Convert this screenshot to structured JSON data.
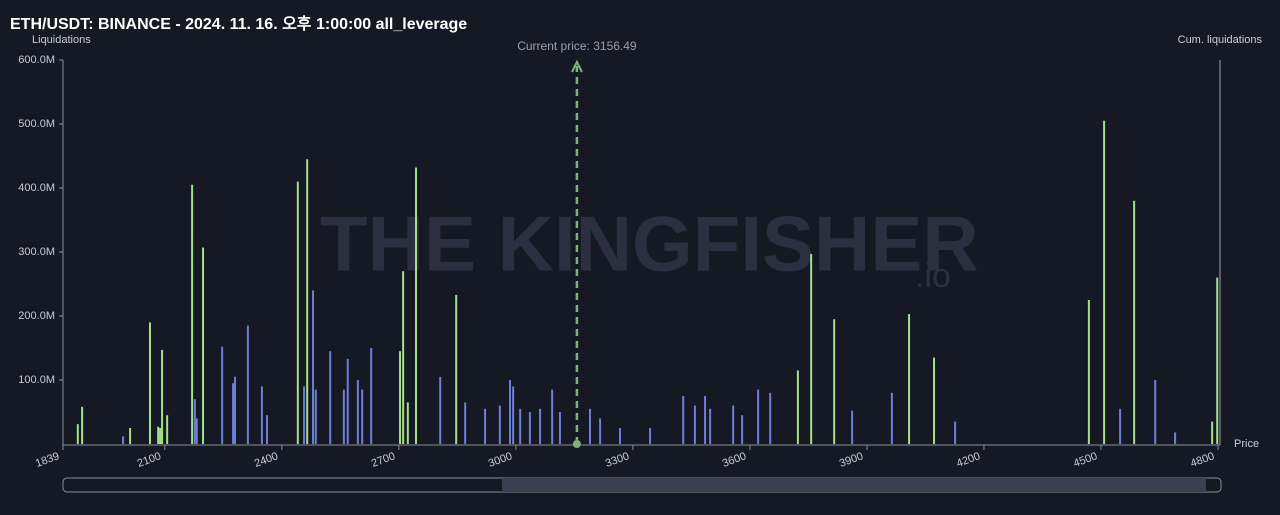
{
  "chart_data": {
    "type": "bar",
    "title": "ETH/USDT: BINANCE - 2024. 11. 16. 오후 1:00:00 all_leverage",
    "y_axis_label": "Liquidations",
    "y2_axis_label": "Cum. liquidations",
    "x_axis_label": "Price",
    "current_price_label": "Current price: 3156.49",
    "current_price": 3156.49,
    "watermark": "THE KINGFISHER",
    "watermark_suffix": ".io",
    "xlim": [
      1839,
      4800
    ],
    "xticks": [
      1839,
      2100,
      2400,
      2700,
      3000,
      3300,
      3600,
      3900,
      4200,
      4500,
      4800
    ],
    "ylim": [
      0,
      600
    ],
    "yticks": [
      {
        "value": 100,
        "label": "100.0M"
      },
      {
        "value": 200,
        "label": "200.0M"
      },
      {
        "value": 300,
        "label": "300.0M"
      },
      {
        "value": 400,
        "label": "400.0M"
      },
      {
        "value": 500,
        "label": "500.0M"
      },
      {
        "value": 600,
        "label": "600.0M"
      }
    ],
    "series": [
      {
        "color": "#a6e08a",
        "x": [
          1877,
          1888,
          2011,
          2062,
          2083,
          2088,
          2093,
          2106,
          2170,
          2198,
          2441,
          2465,
          2703,
          2711,
          2723,
          2744,
          2847,
          3723,
          3757,
          3816,
          4008,
          4072,
          4469,
          4508,
          4585,
          4785,
          4798
        ],
        "values": [
          31,
          58,
          25,
          190,
          27,
          25,
          147,
          45,
          405,
          307,
          410,
          445,
          145,
          270,
          65,
          432,
          233,
          115,
          297,
          195,
          203,
          135,
          225,
          505,
          380,
          35,
          260
        ]
      },
      {
        "color": "#6d7fd6",
        "x": [
          1993,
          2177,
          2182,
          2247,
          2275,
          2280,
          2313,
          2349,
          2362,
          2457,
          2480,
          2487,
          2524,
          2559,
          2569,
          2595,
          2606,
          2629,
          2806,
          2870,
          2921,
          2959,
          2985,
          2993,
          3011,
          3036,
          3062,
          3093,
          3113,
          3190,
          3216,
          3267,
          3344,
          3429,
          3459,
          3485,
          3498,
          3557,
          3580,
          3621,
          3652,
          3862,
          3964,
          4126,
          4549,
          4639,
          4690
        ],
        "values": [
          12,
          70,
          40,
          152,
          95,
          105,
          185,
          90,
          45,
          90,
          240,
          85,
          145,
          85,
          133,
          100,
          85,
          150,
          105,
          65,
          55,
          60,
          100,
          90,
          55,
          50,
          55,
          85,
          50,
          55,
          40,
          25,
          25,
          75,
          60,
          75,
          55,
          60,
          45,
          85,
          80,
          52,
          80,
          35,
          55,
          100,
          18
        ]
      }
    ]
  }
}
